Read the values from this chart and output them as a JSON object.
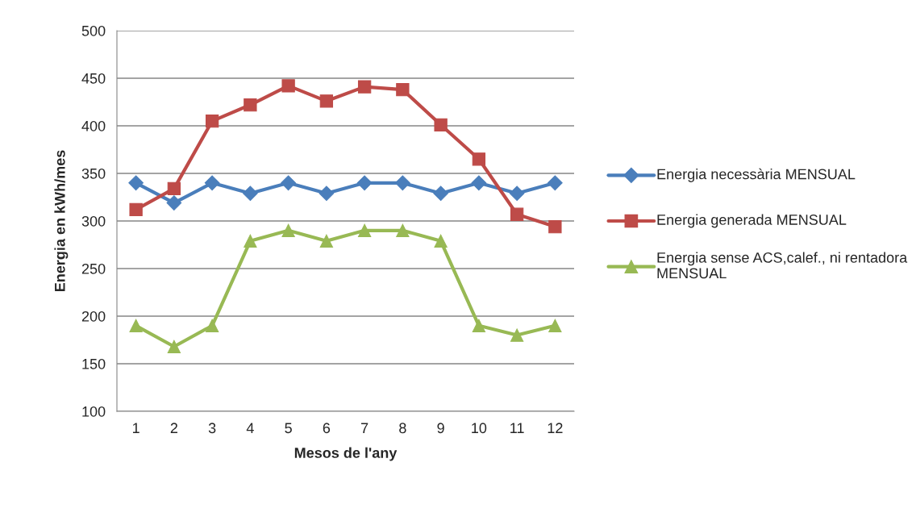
{
  "chart_data": {
    "type": "line",
    "xlabel": "Mesos de l'any",
    "ylabel": "Energia en kWh/mes",
    "categories": [
      "1",
      "2",
      "3",
      "4",
      "5",
      "6",
      "7",
      "8",
      "9",
      "10",
      "11",
      "12"
    ],
    "series": [
      {
        "name": "Energia necessària MENSUAL",
        "color": "#4a7ebb",
        "marker": "diamond",
        "values": [
          340,
          319,
          340,
          329,
          340,
          329,
          340,
          340,
          329,
          340,
          329,
          340
        ]
      },
      {
        "name": "Energia generada MENSUAL",
        "color": "#be4b48",
        "marker": "square",
        "values": [
          312,
          334,
          405,
          422,
          442,
          426,
          441,
          438,
          401,
          365,
          307,
          294
        ]
      },
      {
        "name": "Energia sense ACS,calef., ni rentadora MENSUAL",
        "color": "#98b954",
        "marker": "triangle",
        "values": [
          190,
          168,
          190,
          279,
          290,
          279,
          290,
          290,
          279,
          190,
          180,
          190
        ]
      }
    ],
    "ylim": [
      100,
      500
    ],
    "yticks": [
      100,
      150,
      200,
      250,
      300,
      350,
      400,
      450,
      500
    ],
    "grid": "y",
    "legend": "right",
    "line_style": "solid"
  }
}
